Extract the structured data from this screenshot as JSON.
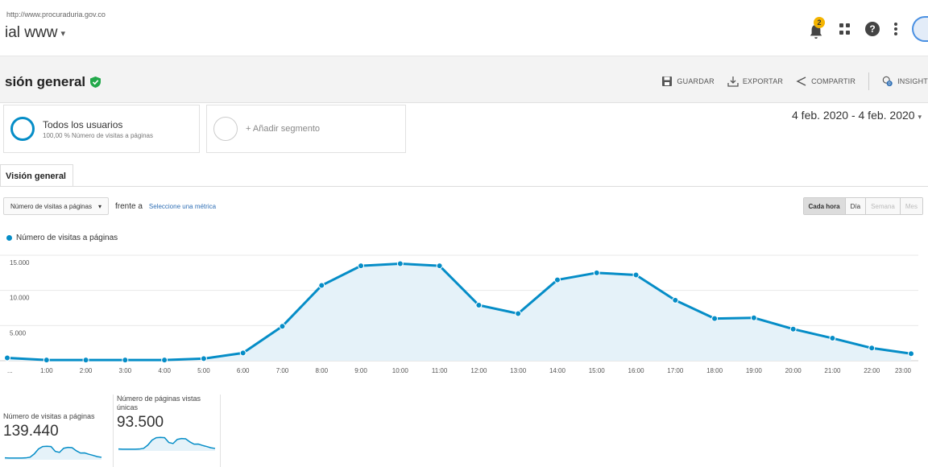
{
  "header": {
    "url": "http://www.procuraduria.gov.co",
    "view_name": "ial www",
    "notifications_count": "2"
  },
  "title_bar": {
    "title": "sión general",
    "actions": [
      "GUARDAR",
      "EXPORTAR",
      "COMPARTIR",
      "INSIGHT"
    ]
  },
  "segments": {
    "all_users": {
      "name": "Todos los usuarios",
      "detail": "100,00 % Número de visitas a páginas"
    },
    "add_segment": "+ Añadir segmento"
  },
  "date_range": "4 feb. 2020 - 4 feb. 2020",
  "tab": {
    "label": "Visión general"
  },
  "metric_selector": {
    "selected": "Número de visitas a páginas",
    "versus": "frente a",
    "select_metric": "Seleccione una métrica"
  },
  "granularity": {
    "options": [
      "Cada hora",
      "Día",
      "Semana",
      "Mes"
    ],
    "active": "Cada hora"
  },
  "colors": {
    "accent": "#058dc7",
    "fill": "#e5f2f9",
    "icon_shield": "#22a84a"
  },
  "chart_data": {
    "type": "area",
    "series": [
      {
        "name": "Número de visitas a páginas",
        "values": [
          400,
          100,
          100,
          100,
          100,
          300,
          1100,
          4900,
          10700,
          13500,
          13800,
          13500,
          7900,
          6700,
          11500,
          12500,
          12200,
          8600,
          6000,
          6100,
          4500,
          3200,
          1800,
          1000
        ]
      }
    ],
    "x": [
      "0:00",
      "1:00",
      "2:00",
      "3:00",
      "4:00",
      "5:00",
      "6:00",
      "7:00",
      "8:00",
      "9:00",
      "10:00",
      "11:00",
      "12:00",
      "13:00",
      "14:00",
      "15:00",
      "16:00",
      "17:00",
      "18:00",
      "19:00",
      "20:00",
      "21:00",
      "22:00",
      "23:00"
    ],
    "x_tick_labels": [
      "...",
      "1:00",
      "2:00",
      "3:00",
      "4:00",
      "5:00",
      "6:00",
      "7:00",
      "8:00",
      "9:00",
      "10:00",
      "11:00",
      "12:00",
      "13:00",
      "14:00",
      "15:00",
      "16:00",
      "17:00",
      "18:00",
      "19:00",
      "20:00",
      "21:00",
      "22:00",
      "23:00"
    ],
    "y_ticks": [
      5000,
      10000,
      15000
    ],
    "y_tick_labels": [
      "5.000",
      "10.000",
      "15.000"
    ],
    "ylim": [
      0,
      15000
    ],
    "grid": true,
    "legend": "top-left"
  },
  "scorecards": [
    {
      "label": "Número de visitas a páginas",
      "value": "139.440"
    },
    {
      "label": "Número de páginas vistas únicas",
      "value": "93.500"
    }
  ]
}
